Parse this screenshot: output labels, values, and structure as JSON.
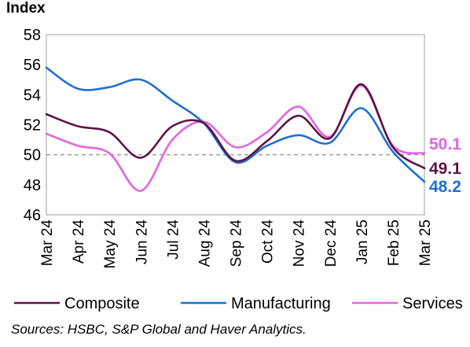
{
  "chart_data": {
    "type": "line",
    "ylabel": "Index",
    "ylim": [
      46,
      58
    ],
    "yticks": [
      46,
      48,
      50,
      52,
      54,
      56,
      58
    ],
    "reference_line": 50,
    "categories": [
      "Mar 24",
      "Apr 24",
      "May 24",
      "Jun 24",
      "Jul 24",
      "Aug 24",
      "Sep 24",
      "Oct 24",
      "Nov 24",
      "Dec 24",
      "Jan 25",
      "Feb 25",
      "Mar 25"
    ],
    "series": [
      {
        "name": "Composite",
        "color": "#5B1446",
        "values": [
          52.7,
          51.9,
          51.5,
          49.8,
          51.9,
          52.1,
          49.6,
          50.9,
          52.6,
          51.1,
          54.7,
          50.5,
          49.1
        ],
        "end_label": "49.1"
      },
      {
        "name": "Manufacturing",
        "color": "#1F6FD1",
        "values": [
          55.8,
          54.4,
          54.5,
          55.0,
          53.6,
          52.1,
          49.5,
          50.6,
          51.3,
          50.8,
          53.1,
          50.2,
          48.2
        ],
        "end_label": "48.2"
      },
      {
        "name": "Services",
        "color": "#E263E2",
        "values": [
          51.4,
          50.6,
          50.1,
          47.6,
          51.0,
          52.2,
          50.5,
          51.5,
          53.2,
          51.2,
          54.6,
          50.6,
          50.1
        ],
        "end_label": "50.1"
      }
    ],
    "legend_position": "bottom",
    "grid": false
  },
  "source_note": "Sources: HSBC, S&P Global and Haver Analytics."
}
